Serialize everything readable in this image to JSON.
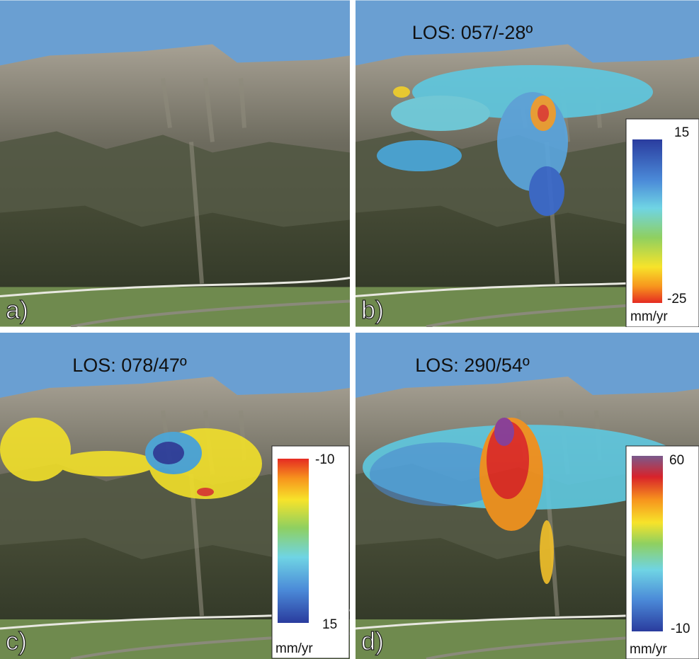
{
  "panels": [
    {
      "label": "a)"
    },
    {
      "label": "b)",
      "title": "LOS: 057/-28º",
      "colorbar": {
        "top": "15",
        "bottom": "-25",
        "unit": "mm/yr"
      }
    },
    {
      "label": "c)",
      "title": "LOS: 078/47º",
      "colorbar": {
        "top": "-10",
        "bottom": "15",
        "unit": "mm/yr"
      }
    },
    {
      "label": "d)",
      "title": "LOS: 290/54º",
      "colorbar": {
        "top": "60",
        "bottom": "-10",
        "unit": "mm/yr"
      }
    }
  ]
}
